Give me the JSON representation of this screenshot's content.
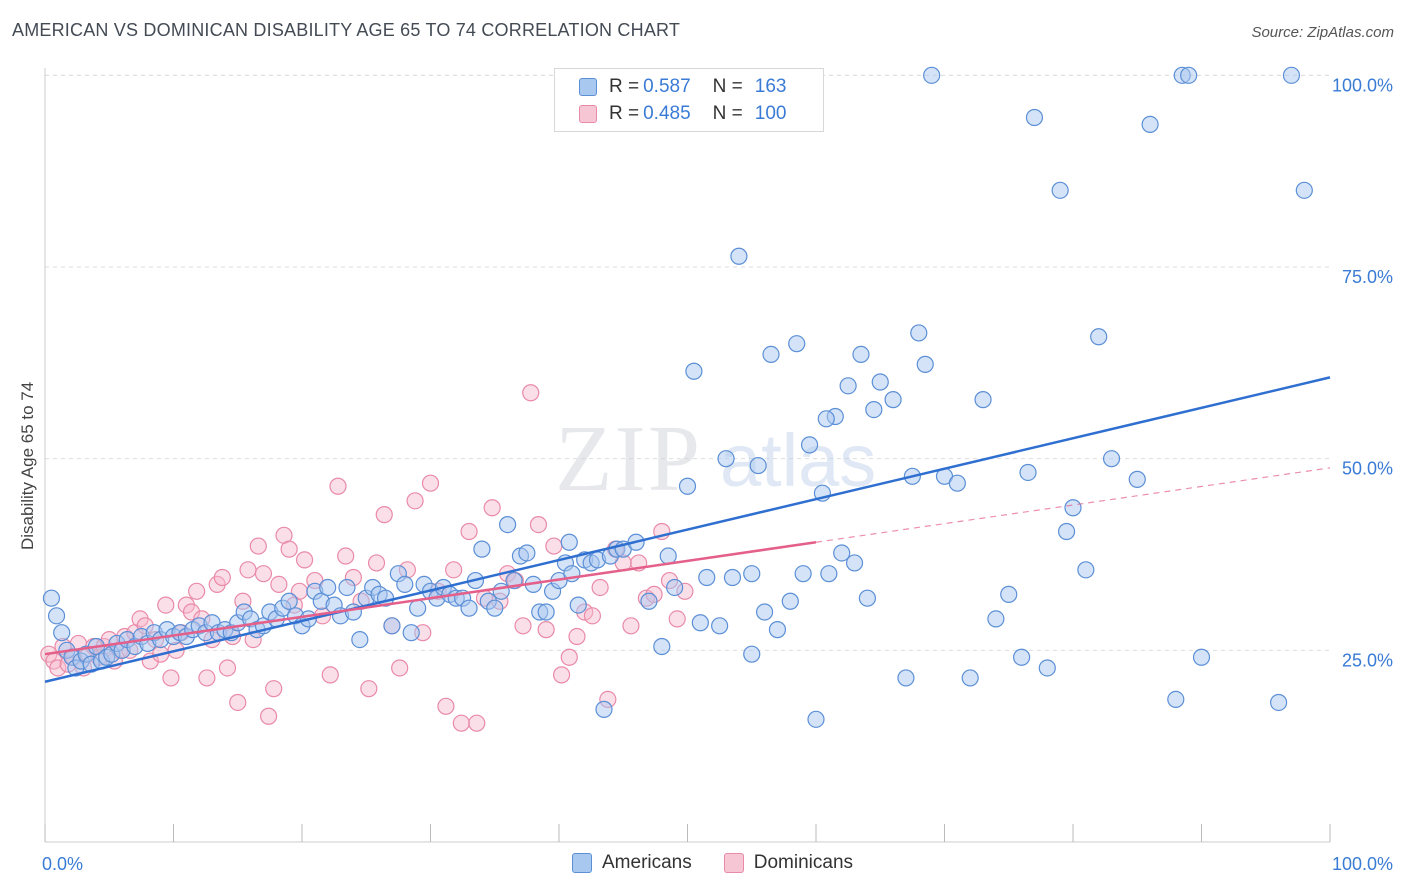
{
  "header": {
    "title": "AMERICAN VS DOMINICAN DISABILITY AGE 65 TO 74 CORRELATION CHART",
    "source": "Source: ZipAtlas.com"
  },
  "watermark": {
    "zip": "ZIP",
    "atlas": "atlas"
  },
  "legend": {
    "r_label": "R =",
    "n_label": "N =",
    "rows": [
      {
        "name": "Americans",
        "r": "0.587",
        "n": "163"
      },
      {
        "name": "Dominicans",
        "r": "0.485",
        "n": "100"
      }
    ]
  },
  "colors": {
    "americans_fill": "#a9c8ef",
    "americans_stroke": "#5b8fd6",
    "americans_line": "#2f6fd0",
    "dominicans_fill": "#f6b8cb",
    "dominicans_stroke": "#e98aa8",
    "dominicans_line": "#e4608a",
    "axis_text": "#3a7bd5",
    "grid": "#dddddd"
  },
  "chart_data": {
    "type": "scatter",
    "title": "AMERICAN VS DOMINICAN DISABILITY AGE 65 TO 74 CORRELATION CHART",
    "xlabel": "",
    "ylabel": "Disability Age 65 to 74",
    "xlim": [
      0,
      100
    ],
    "ylim": [
      0,
      102
    ],
    "x_tick_labels": [
      "0.0%",
      "100.0%"
    ],
    "y_ticks": [
      25,
      50,
      75,
      100
    ],
    "y_tick_labels": [
      "25.0%",
      "50.0%",
      "75.0%",
      "100.0%"
    ],
    "grid": true,
    "legend_position": "top-center",
    "series": [
      {
        "name": "Americans",
        "trend": {
          "x": [
            0,
            100
          ],
          "y": [
            20.9,
            60.6
          ]
        },
        "points": [
          [
            0.5,
            31.8
          ],
          [
            0.9,
            29.5
          ],
          [
            1.3,
            27.3
          ],
          [
            1.7,
            25.0
          ],
          [
            2.1,
            24.1
          ],
          [
            2.4,
            22.7
          ],
          [
            2.8,
            23.6
          ],
          [
            3.2,
            24.5
          ],
          [
            3.6,
            23.2
          ],
          [
            4.0,
            25.5
          ],
          [
            4.4,
            23.6
          ],
          [
            4.8,
            24.1
          ],
          [
            5.2,
            24.5
          ],
          [
            5.6,
            25.9
          ],
          [
            6.0,
            25.0
          ],
          [
            6.4,
            26.4
          ],
          [
            7.0,
            25.5
          ],
          [
            7.5,
            26.8
          ],
          [
            8.0,
            25.9
          ],
          [
            8.5,
            27.3
          ],
          [
            9.0,
            26.4
          ],
          [
            9.5,
            27.7
          ],
          [
            10.0,
            26.8
          ],
          [
            10.5,
            27.3
          ],
          [
            11.0,
            26.8
          ],
          [
            11.5,
            27.7
          ],
          [
            12.0,
            28.2
          ],
          [
            12.5,
            27.3
          ],
          [
            13.0,
            28.6
          ],
          [
            13.5,
            27.3
          ],
          [
            14.0,
            27.7
          ],
          [
            14.5,
            27.3
          ],
          [
            15.0,
            28.6
          ],
          [
            15.5,
            30.0
          ],
          [
            16.0,
            29.1
          ],
          [
            16.5,
            27.7
          ],
          [
            17.0,
            28.2
          ],
          [
            17.5,
            30.0
          ],
          [
            18.0,
            29.1
          ],
          [
            18.5,
            30.5
          ],
          [
            19.0,
            31.4
          ],
          [
            19.5,
            29.5
          ],
          [
            20.0,
            28.2
          ],
          [
            20.5,
            29.1
          ],
          [
            21.0,
            32.7
          ],
          [
            21.5,
            31.4
          ],
          [
            22.0,
            33.2
          ],
          [
            22.5,
            30.9
          ],
          [
            23.0,
            29.5
          ],
          [
            23.5,
            33.2
          ],
          [
            24.0,
            30.0
          ],
          [
            24.5,
            26.4
          ],
          [
            25.0,
            31.8
          ],
          [
            25.5,
            33.2
          ],
          [
            26.0,
            32.3
          ],
          [
            26.5,
            31.8
          ],
          [
            27.0,
            28.2
          ],
          [
            27.5,
            35.0
          ],
          [
            28.0,
            33.6
          ],
          [
            28.5,
            27.3
          ],
          [
            29.0,
            30.5
          ],
          [
            29.5,
            33.6
          ],
          [
            30.0,
            32.7
          ],
          [
            30.5,
            31.8
          ],
          [
            31.0,
            33.2
          ],
          [
            31.5,
            32.3
          ],
          [
            32.0,
            31.8
          ],
          [
            32.5,
            31.8
          ],
          [
            33.0,
            30.5
          ],
          [
            33.5,
            34.1
          ],
          [
            34.0,
            38.2
          ],
          [
            34.5,
            31.4
          ],
          [
            35.0,
            30.5
          ],
          [
            35.5,
            32.7
          ],
          [
            36.0,
            41.4
          ],
          [
            36.5,
            34.1
          ],
          [
            37.0,
            37.3
          ],
          [
            37.5,
            37.7
          ],
          [
            38.0,
            33.6
          ],
          [
            38.5,
            30.0
          ],
          [
            39.0,
            30.0
          ],
          [
            39.5,
            32.7
          ],
          [
            40.0,
            34.1
          ],
          [
            40.5,
            36.4
          ],
          [
            40.8,
            39.1
          ],
          [
            41.0,
            35.0
          ],
          [
            41.5,
            30.9
          ],
          [
            42.0,
            36.8
          ],
          [
            42.5,
            36.4
          ],
          [
            43.0,
            36.8
          ],
          [
            43.5,
            17.3
          ],
          [
            44.0,
            37.3
          ],
          [
            44.5,
            38.2
          ],
          [
            45.0,
            38.2
          ],
          [
            46.0,
            39.1
          ],
          [
            47.0,
            31.4
          ],
          [
            48.0,
            25.5
          ],
          [
            48.5,
            37.3
          ],
          [
            49.0,
            33.2
          ],
          [
            50.0,
            46.4
          ],
          [
            51.0,
            28.6
          ],
          [
            51.5,
            34.5
          ],
          [
            52.5,
            28.2
          ],
          [
            53.5,
            34.5
          ],
          [
            55.0,
            35.0
          ],
          [
            56.0,
            30.0
          ],
          [
            57.0,
            27.7
          ],
          [
            58.0,
            31.4
          ],
          [
            59.0,
            35.0
          ],
          [
            60.0,
            16.0
          ],
          [
            61.0,
            35.0
          ],
          [
            62.0,
            37.7
          ],
          [
            63.0,
            36.4
          ],
          [
            64.0,
            31.8
          ],
          [
            50.5,
            61.4
          ],
          [
            53.0,
            50.0
          ],
          [
            54.0,
            76.4
          ],
          [
            55.5,
            49.1
          ],
          [
            56.5,
            63.6
          ],
          [
            58.5,
            65.0
          ],
          [
            59.5,
            51.8
          ],
          [
            60.5,
            45.5
          ],
          [
            61.5,
            55.5
          ],
          [
            62.5,
            59.5
          ],
          [
            63.5,
            63.6
          ],
          [
            64.5,
            56.4
          ],
          [
            65.0,
            60.0
          ],
          [
            66.0,
            57.7
          ],
          [
            67.0,
            21.4
          ],
          [
            67.5,
            47.7
          ],
          [
            68.0,
            66.4
          ],
          [
            68.5,
            62.3
          ],
          [
            69.0,
            100.0
          ],
          [
            70.0,
            47.7
          ],
          [
            71.0,
            46.8
          ],
          [
            72.0,
            21.4
          ],
          [
            73.0,
            57.7
          ],
          [
            74.0,
            29.1
          ],
          [
            75.0,
            32.3
          ],
          [
            76.0,
            24.1
          ],
          [
            76.5,
            48.2
          ],
          [
            77.0,
            94.5
          ],
          [
            78.0,
            22.7
          ],
          [
            79.0,
            85.0
          ],
          [
            79.5,
            40.5
          ],
          [
            80.0,
            43.6
          ],
          [
            81.0,
            35.5
          ],
          [
            82.0,
            65.9
          ],
          [
            83.0,
            50.0
          ],
          [
            85.0,
            47.3
          ],
          [
            86.0,
            93.6
          ],
          [
            88.0,
            18.6
          ],
          [
            88.5,
            100.0
          ],
          [
            89.0,
            100.0
          ],
          [
            90.0,
            24.1
          ],
          [
            96.0,
            18.2
          ],
          [
            97.0,
            100.0
          ],
          [
            98.0,
            85.0
          ],
          [
            60.8,
            55.2
          ],
          [
            55.0,
            24.5
          ]
        ]
      },
      {
        "name": "Dominicans",
        "trend": {
          "x": [
            0,
            60
          ],
          "y": [
            24.5,
            39.1
          ]
        },
        "trend_extension": {
          "x": [
            60,
            100
          ],
          "y": [
            39.1,
            48.8
          ]
        },
        "points": [
          [
            0.3,
            24.5
          ],
          [
            0.7,
            23.6
          ],
          [
            1.0,
            22.7
          ],
          [
            1.4,
            25.5
          ],
          [
            1.8,
            23.2
          ],
          [
            2.2,
            24.1
          ],
          [
            2.6,
            25.9
          ],
          [
            3.0,
            22.7
          ],
          [
            3.4,
            24.5
          ],
          [
            3.8,
            25.5
          ],
          [
            4.2,
            24.1
          ],
          [
            4.6,
            25.5
          ],
          [
            5.0,
            26.4
          ],
          [
            5.4,
            23.6
          ],
          [
            5.8,
            25.0
          ],
          [
            6.2,
            26.8
          ],
          [
            6.6,
            25.0
          ],
          [
            7.0,
            27.3
          ],
          [
            7.4,
            29.1
          ],
          [
            7.8,
            28.2
          ],
          [
            8.2,
            23.6
          ],
          [
            8.6,
            26.4
          ],
          [
            9.0,
            24.5
          ],
          [
            9.4,
            30.9
          ],
          [
            9.8,
            21.4
          ],
          [
            10.2,
            25.0
          ],
          [
            10.6,
            27.3
          ],
          [
            11.0,
            30.9
          ],
          [
            11.4,
            30.0
          ],
          [
            11.8,
            32.7
          ],
          [
            12.2,
            29.1
          ],
          [
            12.6,
            21.4
          ],
          [
            13.0,
            26.4
          ],
          [
            13.4,
            33.6
          ],
          [
            13.8,
            34.5
          ],
          [
            14.2,
            22.7
          ],
          [
            14.6,
            26.8
          ],
          [
            15.0,
            18.2
          ],
          [
            15.4,
            31.4
          ],
          [
            15.8,
            35.5
          ],
          [
            16.2,
            26.4
          ],
          [
            16.6,
            38.6
          ],
          [
            17.0,
            35.0
          ],
          [
            17.4,
            16.4
          ],
          [
            17.8,
            20.0
          ],
          [
            18.2,
            33.6
          ],
          [
            18.6,
            40.0
          ],
          [
            19.0,
            38.2
          ],
          [
            19.4,
            30.9
          ],
          [
            19.8,
            32.7
          ],
          [
            20.2,
            36.8
          ],
          [
            21.0,
            34.1
          ],
          [
            21.6,
            29.5
          ],
          [
            22.2,
            21.8
          ],
          [
            22.8,
            46.4
          ],
          [
            23.4,
            37.3
          ],
          [
            24.0,
            34.5
          ],
          [
            24.6,
            31.4
          ],
          [
            25.2,
            20.0
          ],
          [
            25.8,
            36.4
          ],
          [
            26.4,
            42.7
          ],
          [
            27.0,
            28.2
          ],
          [
            27.6,
            22.7
          ],
          [
            28.2,
            35.5
          ],
          [
            28.8,
            44.5
          ],
          [
            29.4,
            27.3
          ],
          [
            30.0,
            46.8
          ],
          [
            30.6,
            32.7
          ],
          [
            31.2,
            17.7
          ],
          [
            31.8,
            35.5
          ],
          [
            32.4,
            15.5
          ],
          [
            33.0,
            40.5
          ],
          [
            33.6,
            15.5
          ],
          [
            34.2,
            31.8
          ],
          [
            34.8,
            43.6
          ],
          [
            35.4,
            31.4
          ],
          [
            36.0,
            35.0
          ],
          [
            36.6,
            34.1
          ],
          [
            37.2,
            28.2
          ],
          [
            37.8,
            58.6
          ],
          [
            38.4,
            41.4
          ],
          [
            39.0,
            27.7
          ],
          [
            39.6,
            38.6
          ],
          [
            40.2,
            21.8
          ],
          [
            40.8,
            24.1
          ],
          [
            41.4,
            26.8
          ],
          [
            42.0,
            30.0
          ],
          [
            42.6,
            29.5
          ],
          [
            43.2,
            33.2
          ],
          [
            43.8,
            18.6
          ],
          [
            44.4,
            38.2
          ],
          [
            45.0,
            36.4
          ],
          [
            45.6,
            28.2
          ],
          [
            46.2,
            36.4
          ],
          [
            46.8,
            31.8
          ],
          [
            47.4,
            32.3
          ],
          [
            48.0,
            40.5
          ],
          [
            48.6,
            34.1
          ],
          [
            49.2,
            29.1
          ],
          [
            49.8,
            32.7
          ]
        ]
      }
    ]
  }
}
